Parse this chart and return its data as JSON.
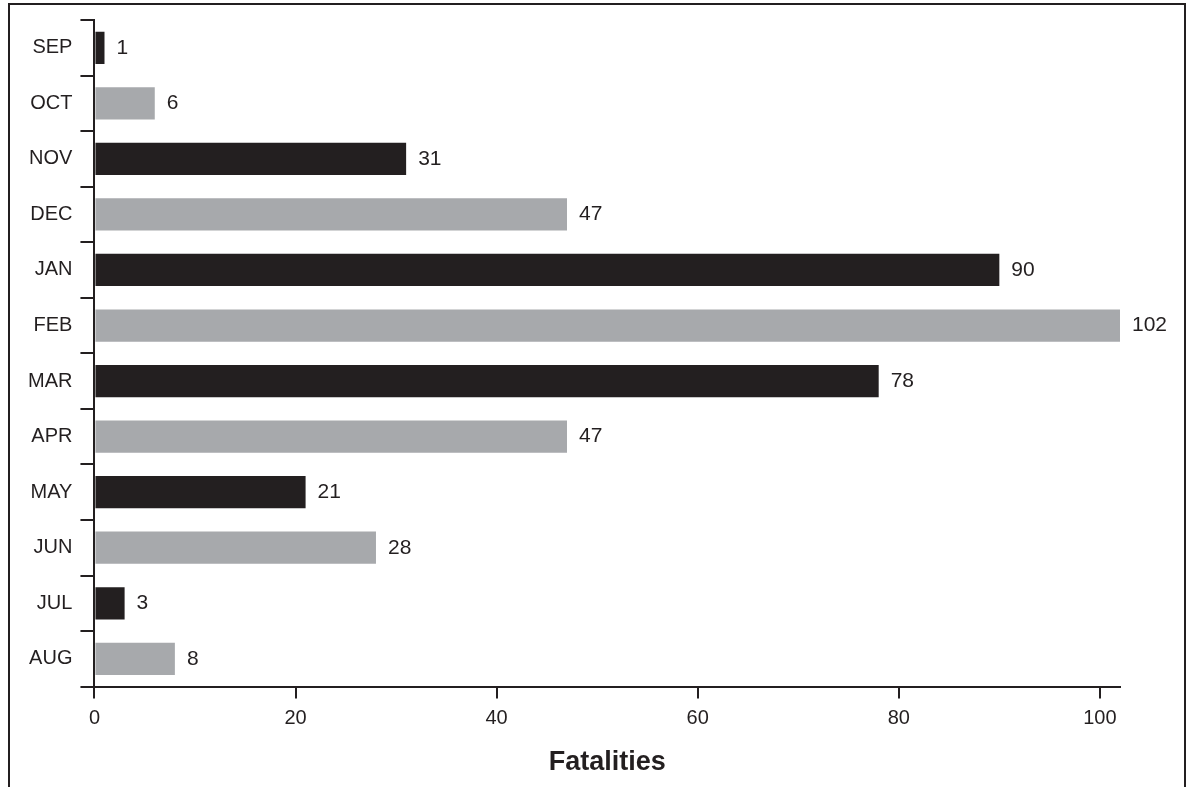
{
  "chart_data": {
    "type": "bar",
    "orientation": "horizontal",
    "xlabel": "Fatalities",
    "categories": [
      "SEP",
      "OCT",
      "NOV",
      "DEC",
      "JAN",
      "FEB",
      "MAR",
      "APR",
      "MAY",
      "JUN",
      "JUL",
      "AUG"
    ],
    "values": [
      1,
      6,
      31,
      47,
      90,
      102,
      78,
      47,
      21,
      28,
      3,
      8
    ],
    "colors": [
      "#231f20",
      "#a7a9ac",
      "#231f20",
      "#a7a9ac",
      "#231f20",
      "#a7a9ac",
      "#231f20",
      "#a7a9ac",
      "#231f20",
      "#a7a9ac",
      "#231f20",
      "#a7a9ac"
    ],
    "xlim": [
      0,
      102
    ],
    "xticks": [
      0,
      20,
      40,
      60,
      80,
      100
    ],
    "data_labels": true,
    "grid": false,
    "legend": false
  }
}
